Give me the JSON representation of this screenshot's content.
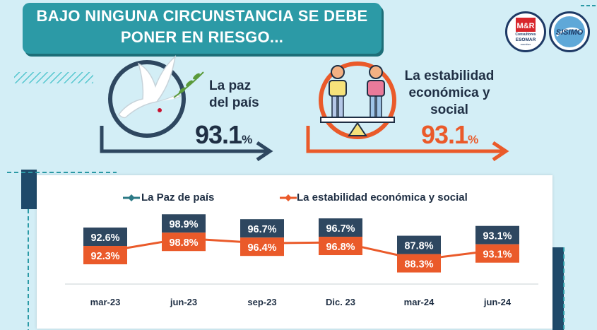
{
  "title": {
    "line1": "BAJO NINGUNA CIRCUNSTANCIA SE DEBE",
    "line2": "PONER EN RIESGO..."
  },
  "logos": {
    "mr": {
      "line1": "M&R",
      "line2": "Consultores",
      "line3": "ESOMAR",
      "line4": "member"
    },
    "sisimo": {
      "text": "SISIMO"
    }
  },
  "stat_paz": {
    "label_line1": "La paz",
    "label_line2": "del país",
    "value": "93.1",
    "unit": "%"
  },
  "stat_estabilidad": {
    "label_line1": "La estabilidad",
    "label_line2": "económica y",
    "label_line3": "social",
    "value": "93.1",
    "unit": "%"
  },
  "colors": {
    "teal": "#2c9aa6",
    "navy": "#2e4760",
    "orange": "#ea5a2a",
    "bg": "#d3eef6"
  },
  "icons": {
    "paz": "dove-icon",
    "estabilidad": "balance-people-icon",
    "legend_teal": "teal-line-marker-icon",
    "legend_orange": "orange-line-marker-icon"
  },
  "chart_data": {
    "type": "line",
    "categories": [
      "mar-23",
      "jun-23",
      "sep-23",
      "Dic. 23",
      "mar-24",
      "jun-24"
    ],
    "series": [
      {
        "name": "La Paz de país",
        "values": [
          92.6,
          98.9,
          96.7,
          96.7,
          87.8,
          93.1
        ],
        "labels": [
          "92.6%",
          "98.9%",
          "96.7%",
          "96.7%",
          "87.8%",
          "93.1%"
        ],
        "color": "#2e4760"
      },
      {
        "name": "La estabilidad económica y social",
        "values": [
          92.3,
          98.8,
          96.4,
          96.8,
          88.3,
          93.1
        ],
        "labels": [
          "92.3%",
          "98.8%",
          "96.4%",
          "96.8%",
          "88.3%",
          "93.1%"
        ],
        "color": "#ea5a2a"
      }
    ],
    "legend": "top",
    "grid": false
  }
}
